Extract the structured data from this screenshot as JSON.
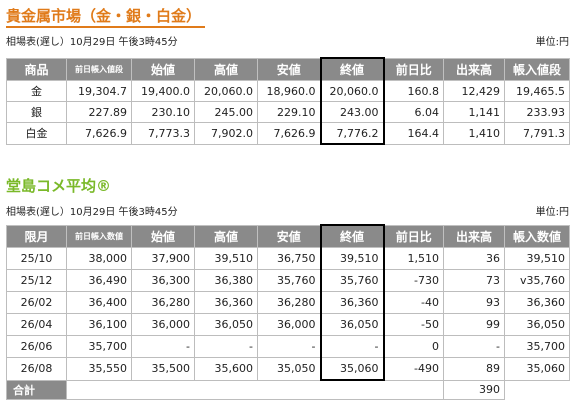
{
  "section1": {
    "title": "貴金属市場（金・銀・白金）",
    "meta_left": "相場表(遅し）10月29日 午後3時45分",
    "unit": "単位:円",
    "headers": [
      "商品",
      "前日帳入値段",
      "始値",
      "高値",
      "安値",
      "終値",
      "前日比",
      "出来高",
      "帳入値段"
    ],
    "rows": [
      [
        "金",
        "19,304.7",
        "19,400.0",
        "20,060.0",
        "18,960.0",
        "20,060.0",
        "160.8",
        "12,429",
        "19,465.5"
      ],
      [
        "銀",
        "227.89",
        "230.10",
        "245.00",
        "229.10",
        "243.00",
        "6.04",
        "1,141",
        "233.93"
      ],
      [
        "白金",
        "7,626.9",
        "7,773.3",
        "7,902.0",
        "7,626.9",
        "7,776.2",
        "164.4",
        "1,410",
        "7,791.3"
      ]
    ]
  },
  "section2": {
    "title": "堂島コメ平均®",
    "meta_left": "相場表(遅し）10月29日 午後3時45分",
    "unit": "単位:円",
    "headers": [
      "限月",
      "前日帳入数値",
      "始値",
      "高値",
      "安値",
      "終値",
      "前日比",
      "出来高",
      "帳入数値"
    ],
    "rows": [
      [
        "25/10",
        "38,000",
        "37,900",
        "39,510",
        "36,750",
        "39,510",
        "1,510",
        "36",
        "39,510"
      ],
      [
        "25/12",
        "36,490",
        "36,300",
        "36,380",
        "35,760",
        "35,760",
        "-730",
        "73",
        "v35,760"
      ],
      [
        "26/02",
        "36,400",
        "36,280",
        "36,360",
        "36,280",
        "36,360",
        "-40",
        "93",
        "36,360"
      ],
      [
        "26/04",
        "36,100",
        "36,000",
        "36,050",
        "36,000",
        "36,050",
        "-50",
        "99",
        "36,050"
      ],
      [
        "26/06",
        "35,700",
        "-",
        "-",
        "-",
        "-",
        "0",
        "-",
        "35,700"
      ],
      [
        "26/08",
        "35,550",
        "35,500",
        "35,600",
        "35,050",
        "35,060",
        "-490",
        "89",
        "35,060"
      ]
    ],
    "total_label": "合計",
    "total_volume": "390"
  }
}
